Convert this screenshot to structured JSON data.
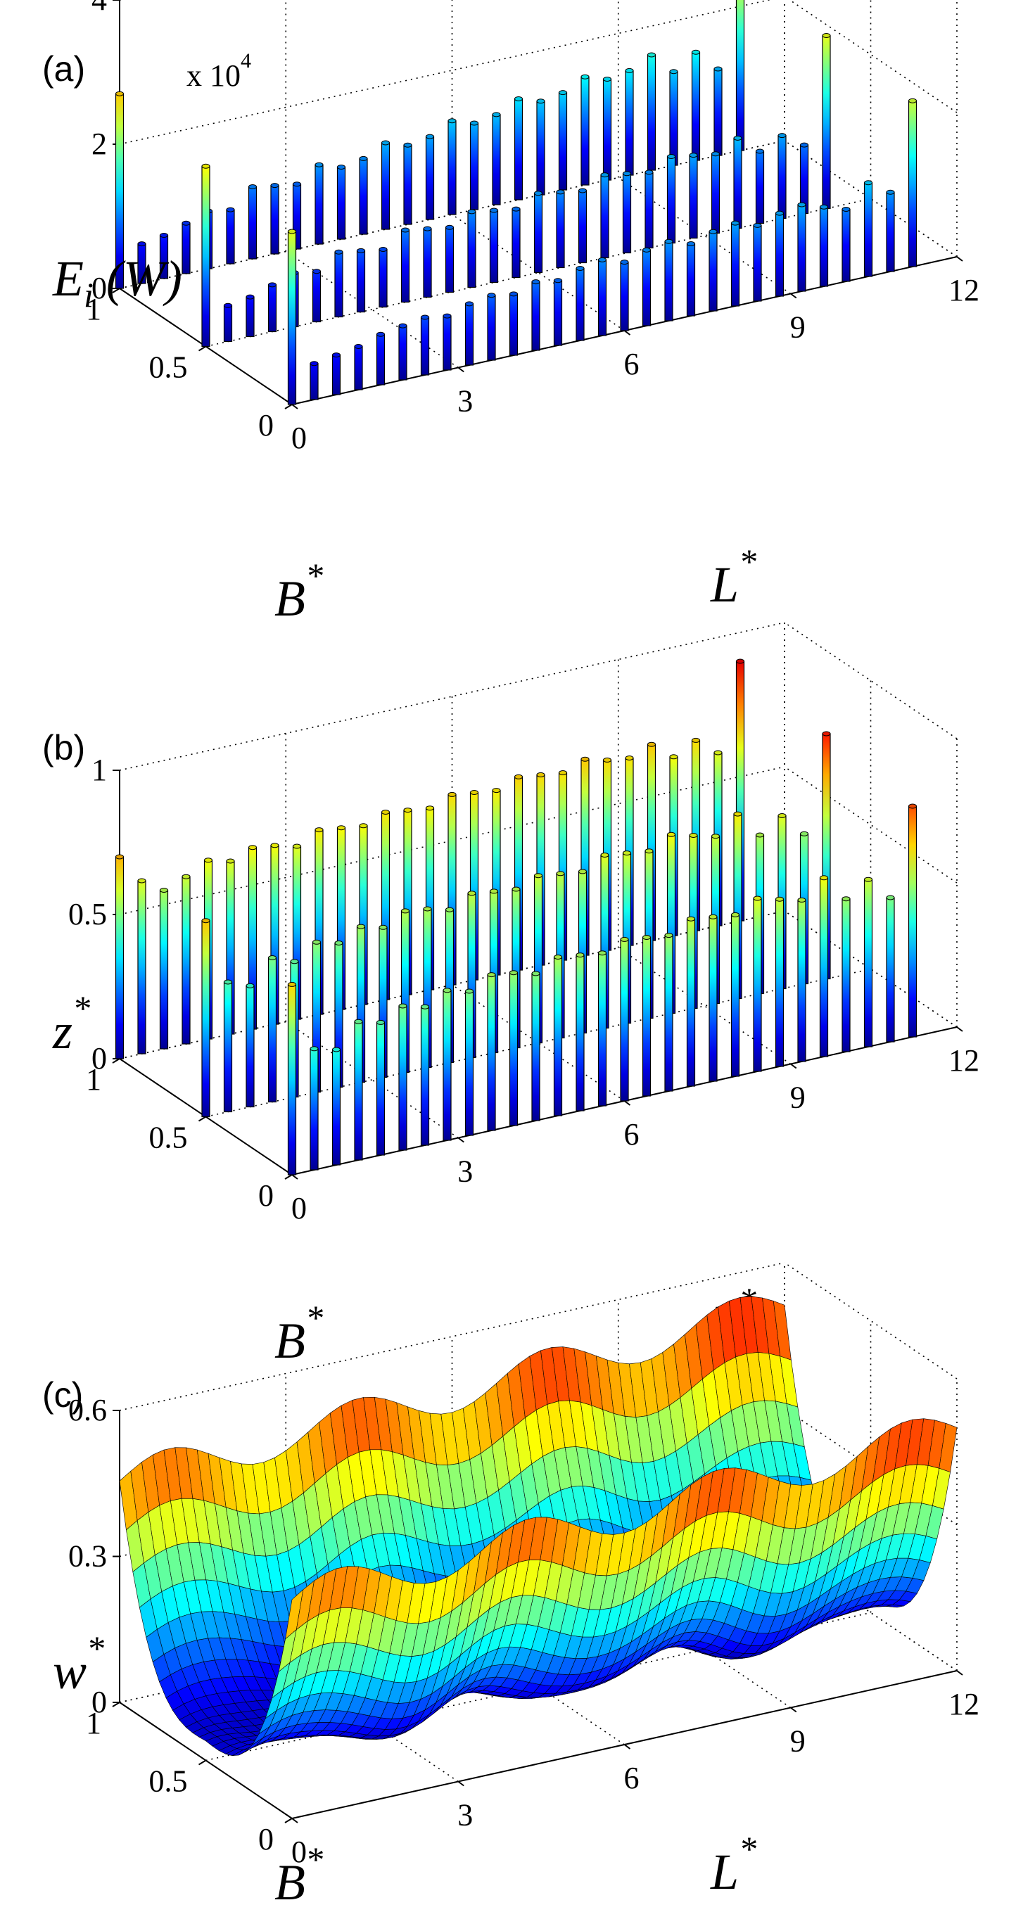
{
  "colormap": [
    "#00008f",
    "#0000ff",
    "#0080ff",
    "#00ffff",
    "#80ff80",
    "#ffff00",
    "#ff8000",
    "#ff0000",
    "#800000"
  ],
  "chart_data": [
    {
      "id": "a",
      "type": "bar3d",
      "panel_label": "(a)",
      "z_label_main": "E",
      "z_label_sub": "i",
      "z_label_unit": " (W)",
      "z_exponent_base": "x 10",
      "z_exponent_power": "4",
      "xlabel": "L",
      "ylabel": "B",
      "label_superscript": "*",
      "x_ticks": [
        "0",
        "3",
        "6",
        "9",
        "12"
      ],
      "y_ticks": [
        "0",
        "0.5",
        "1"
      ],
      "z_ticks": [
        "0",
        "2",
        "4"
      ],
      "x_range": [
        0,
        12
      ],
      "y_range": [
        0,
        1
      ],
      "z_range": [
        0,
        4
      ],
      "grid": true,
      "rows": [
        {
          "B": 1.0,
          "L": [
            0.0,
            0.4,
            0.8,
            1.2,
            1.6,
            2.0,
            2.4,
            2.8,
            3.2,
            3.6,
            4.0,
            4.4,
            4.8,
            5.2,
            5.6,
            6.0,
            6.4,
            6.8,
            7.2,
            7.6,
            8.0,
            8.4,
            8.8,
            9.2,
            9.6,
            10.0,
            10.4,
            10.8,
            11.2
          ],
          "values": [
            2.7,
            0.55,
            0.6,
            0.7,
            0.8,
            0.75,
            1.0,
            0.95,
            0.9,
            1.1,
            1.0,
            1.05,
            1.2,
            1.1,
            1.15,
            1.3,
            1.2,
            1.25,
            1.4,
            1.3,
            1.35,
            1.5,
            1.4,
            1.45,
            1.6,
            1.3,
            1.5,
            1.2,
            2.5
          ]
        },
        {
          "B": 0.5,
          "L": [
            0.0,
            0.4,
            0.8,
            1.2,
            1.6,
            2.0,
            2.4,
            2.8,
            3.2,
            3.6,
            4.0,
            4.4,
            4.8,
            5.2,
            5.6,
            6.0,
            6.4,
            6.8,
            7.2,
            7.6,
            8.0,
            8.4,
            8.8,
            9.2,
            9.6,
            10.0,
            10.4,
            10.8,
            11.2
          ],
          "values": [
            2.5,
            0.5,
            0.55,
            0.65,
            0.75,
            0.7,
            0.9,
            0.85,
            0.8,
            1.0,
            0.95,
            0.9,
            1.05,
            1.0,
            0.95,
            1.1,
            1.05,
            1.0,
            1.15,
            1.1,
            1.05,
            1.2,
            1.15,
            1.1,
            1.25,
            1.0,
            1.15,
            0.95,
            2.4
          ]
        },
        {
          "B": 0.0,
          "L": [
            0.0,
            0.4,
            0.8,
            1.2,
            1.6,
            2.0,
            2.4,
            2.8,
            3.2,
            3.6,
            4.0,
            4.4,
            4.8,
            5.2,
            5.6,
            6.0,
            6.4,
            6.8,
            7.2,
            7.6,
            8.0,
            8.4,
            8.8,
            9.2,
            9.6,
            10.0,
            10.4,
            10.8,
            11.2
          ],
          "values": [
            2.4,
            0.5,
            0.55,
            0.6,
            0.7,
            0.75,
            0.8,
            0.75,
            0.85,
            0.9,
            0.85,
            0.95,
            0.9,
            1.0,
            1.05,
            0.95,
            1.05,
            1.1,
            1.0,
            1.1,
            1.15,
            1.05,
            1.15,
            1.2,
            1.1,
            1.0,
            1.3,
            1.1,
            2.3
          ]
        }
      ]
    },
    {
      "id": "b",
      "type": "bar3d",
      "panel_label": "(b)",
      "z_label_main": "z",
      "xlabel": "L",
      "ylabel": "B",
      "label_superscript": "*",
      "x_ticks": [
        "0",
        "3",
        "6",
        "9",
        "12"
      ],
      "y_ticks": [
        "0",
        "0.5",
        "1"
      ],
      "z_ticks": [
        "0",
        "0.5",
        "1"
      ],
      "x_range": [
        0,
        12
      ],
      "y_range": [
        0,
        1
      ],
      "z_range": [
        0,
        1
      ],
      "grid": true,
      "rows": [
        {
          "B": 1.0,
          "L": [
            0.0,
            0.4,
            0.8,
            1.2,
            1.6,
            2.0,
            2.4,
            2.8,
            3.2,
            3.6,
            4.0,
            4.4,
            4.8,
            5.2,
            5.6,
            6.0,
            6.4,
            6.8,
            7.2,
            7.6,
            8.0,
            8.4,
            8.8,
            9.2,
            9.6,
            10.0,
            10.4,
            10.8,
            11.2
          ],
          "values": [
            0.7,
            0.6,
            0.55,
            0.58,
            0.62,
            0.6,
            0.63,
            0.62,
            0.6,
            0.64,
            0.63,
            0.62,
            0.65,
            0.64,
            0.63,
            0.66,
            0.65,
            0.64,
            0.67,
            0.66,
            0.65,
            0.68,
            0.66,
            0.65,
            0.68,
            0.62,
            0.66,
            0.6,
            0.9
          ]
        },
        {
          "B": 0.5,
          "L": [
            0.0,
            0.4,
            0.8,
            1.2,
            1.6,
            2.0,
            2.4,
            2.8,
            3.2,
            3.6,
            4.0,
            4.4,
            4.8,
            5.2,
            5.6,
            6.0,
            6.4,
            6.8,
            7.2,
            7.6,
            8.0,
            8.4,
            8.8,
            9.2,
            9.6,
            10.0,
            10.4,
            10.8,
            11.2
          ],
          "values": [
            0.68,
            0.45,
            0.42,
            0.5,
            0.47,
            0.52,
            0.5,
            0.54,
            0.52,
            0.56,
            0.55,
            0.53,
            0.57,
            0.56,
            0.55,
            0.58,
            0.57,
            0.56,
            0.6,
            0.59,
            0.58,
            0.62,
            0.6,
            0.58,
            0.64,
            0.55,
            0.6,
            0.52,
            0.85
          ]
        },
        {
          "B": 0.0,
          "L": [
            0.0,
            0.4,
            0.8,
            1.2,
            1.6,
            2.0,
            2.4,
            2.8,
            3.2,
            3.6,
            4.0,
            4.4,
            4.8,
            5.2,
            5.6,
            6.0,
            6.4,
            6.8,
            7.2,
            7.6,
            8.0,
            8.4,
            8.8,
            9.2,
            9.6,
            10.0,
            10.4,
            10.8,
            11.2
          ],
          "values": [
            0.66,
            0.42,
            0.4,
            0.48,
            0.46,
            0.5,
            0.48,
            0.52,
            0.5,
            0.54,
            0.53,
            0.51,
            0.55,
            0.54,
            0.53,
            0.56,
            0.55,
            0.54,
            0.58,
            0.57,
            0.56,
            0.6,
            0.58,
            0.56,
            0.62,
            0.53,
            0.58,
            0.5,
            0.8
          ]
        }
      ]
    },
    {
      "id": "c",
      "type": "surface",
      "panel_label": "(c)",
      "z_label_main": "w",
      "xlabel": "L",
      "ylabel": "B",
      "label_superscript": "*",
      "x_ticks": [
        "0",
        "3",
        "6",
        "9",
        "12"
      ],
      "y_ticks": [
        "0",
        "0.5",
        "1"
      ],
      "z_ticks": [
        "0",
        "0.3",
        "0.6"
      ],
      "x_range": [
        0,
        12
      ],
      "y_range": [
        0,
        1
      ],
      "z_range": [
        0,
        0.6
      ],
      "grid": true,
      "surface": {
        "description_values": "w* as function of L* (0..12) and B* (0..1)",
        "edge_value_B0_start": 0.45,
        "edge_value_B0_end": 0.5,
        "far_edge_max": 0.6,
        "trough_value": 0.02,
        "ripple_amplitude": 0.04,
        "ripple_count": 7
      }
    }
  ]
}
